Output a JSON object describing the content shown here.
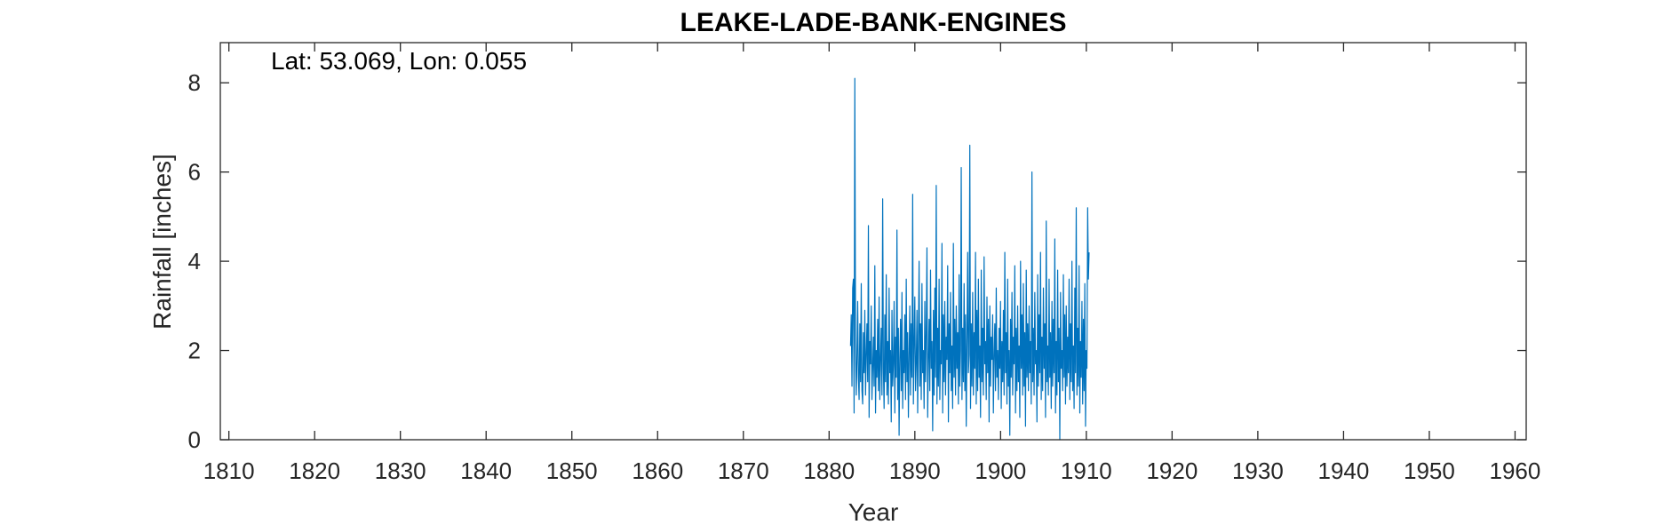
{
  "chart_data": {
    "type": "line",
    "title": "LEAKE-LADE-BANK-ENGINES",
    "xlabel": "Year",
    "ylabel": "Rainfall [inches]",
    "annotation": "Lat: 53.069, Lon: 0.055",
    "xlim": [
      1809,
      1961.3
    ],
    "ylim": [
      0,
      8.9
    ],
    "x_ticks": [
      1810,
      1820,
      1830,
      1840,
      1850,
      1860,
      1870,
      1880,
      1890,
      1900,
      1910,
      1920,
      1930,
      1940,
      1950,
      1960
    ],
    "y_ticks": [
      0,
      2,
      4,
      6,
      8
    ],
    "grid": false,
    "legend": "none",
    "series": [
      {
        "color": "#0072BD",
        "x_start": 1882.5,
        "x_step": 0.0833,
        "values": [
          2.1,
          2.8,
          1.2,
          3.4,
          3.6,
          0.6,
          8.1,
          2.2,
          1.0,
          1.8,
          3.1,
          1.4,
          0.9,
          2.6,
          1.3,
          3.5,
          1.1,
          0.8,
          2.4,
          1.5,
          2.9,
          1.0,
          1.9,
          2.6,
          1.3,
          4.8,
          0.5,
          2.2,
          1.7,
          3.0,
          0.9,
          1.6,
          2.3,
          1.2,
          3.9,
          0.6,
          2.0,
          1.4,
          2.7,
          1.1,
          3.2,
          0.9,
          1.8,
          2.5,
          1.0,
          5.4,
          1.6,
          0.7,
          2.8,
          1.3,
          3.7,
          1.0,
          2.2,
          0.8,
          3.4,
          1.5,
          2.0,
          0.4,
          2.9,
          1.2,
          1.7,
          3.1,
          0.6,
          2.3,
          1.4,
          4.7,
          0.9,
          2.5,
          0.1,
          1.8,
          2.7,
          1.1,
          3.3,
          0.7,
          2.0,
          1.5,
          2.8,
          0.9,
          3.6,
          1.3,
          2.4,
          0.5,
          1.9,
          3.0,
          1.0,
          2.6,
          1.4,
          5.5,
          0.8,
          2.1,
          3.2,
          1.1,
          1.7,
          2.9,
          0.6,
          2.3,
          4.0,
          1.2,
          2.6,
          0.9,
          3.5,
          1.5,
          2.0,
          0.7,
          3.1,
          1.3,
          2.4,
          4.3,
          0.5,
          1.8,
          2.7,
          1.1,
          3.8,
          1.6,
          2.2,
          0.2,
          2.9,
          1.0,
          3.4,
          1.4,
          5.7,
          0.8,
          2.5,
          1.2,
          3.6,
          0.9,
          2.0,
          1.7,
          4.4,
          0.6,
          2.8,
          1.3,
          3.1,
          1.0,
          2.3,
          1.8,
          3.9,
          0.4,
          2.6,
          1.5,
          3.3,
          1.1,
          2.1,
          0.7,
          4.4,
          1.4,
          2.7,
          1.0,
          3.0,
          1.6,
          2.4,
          0.8,
          3.7,
          1.2,
          2.0,
          6.1,
          0.9,
          2.5,
          1.3,
          3.5,
          1.1,
          2.8,
          0.3,
          2.2,
          4.2,
          1.5,
          1.9,
          6.6,
          0.7,
          2.6,
          1.2,
          3.3,
          1.0,
          2.4,
          1.6,
          4.2,
          0.8,
          2.9,
          1.1,
          3.6,
          1.4,
          2.1,
          0.5,
          3.8,
          1.3,
          2.5,
          1.0,
          4.1,
          1.7,
          2.2,
          0.9,
          3.2,
          1.5,
          2.7,
          0.4,
          3.0,
          1.2,
          2.3,
          1.8,
          2.8,
          0.6,
          1.9,
          2.6,
          1.1,
          3.4,
          1.4,
          2.0,
          0.9,
          2.5,
          1.6,
          3.1,
          0.7,
          2.2,
          1.3,
          2.9,
          1.0,
          4.2,
          1.5,
          2.4,
          0.8,
          3.6,
          1.2,
          2.0,
          0.1,
          2.7,
          1.4,
          3.3,
          1.0,
          2.3,
          1.7,
          3.9,
          0.6,
          2.5,
          1.1,
          3.0,
          1.3,
          2.1,
          0.5,
          4.0,
          1.6,
          2.8,
          1.0,
          3.5,
          1.2,
          2.4,
          0.3,
          3.8,
          1.4,
          2.6,
          1.1,
          3.0,
          1.5,
          2.2,
          0.8,
          6.0,
          1.3,
          2.5,
          1.0,
          3.3,
          1.7,
          2.0,
          0.4,
          3.7,
          1.2,
          2.8,
          1.5,
          4.2,
          0.9,
          2.3,
          1.1,
          3.4,
          1.6,
          2.6,
          0.5,
          4.9,
          1.3,
          2.1,
          1.0,
          3.6,
          1.4,
          2.4,
          0.7,
          3.1,
          1.2,
          2.7,
          1.5,
          4.5,
          0.6,
          2.2,
          1.0,
          3.8,
          1.3,
          2.5,
          0.0,
          3.3,
          1.6,
          2.0,
          1.1,
          3.7,
          1.4,
          2.8,
          0.8,
          3.0,
          1.2,
          2.3,
          1.5,
          3.6,
          0.9,
          2.6,
          1.3,
          4.0,
          1.1,
          2.1,
          0.7,
          3.4,
          1.5,
          5.2,
          1.0,
          2.5,
          1.2,
          3.9,
          0.6,
          2.2,
          1.4,
          3.1,
          0.8,
          2.7,
          1.1,
          3.5,
          0.3,
          2.0,
          1.6,
          5.2,
          3.6,
          4.2
        ]
      }
    ]
  }
}
